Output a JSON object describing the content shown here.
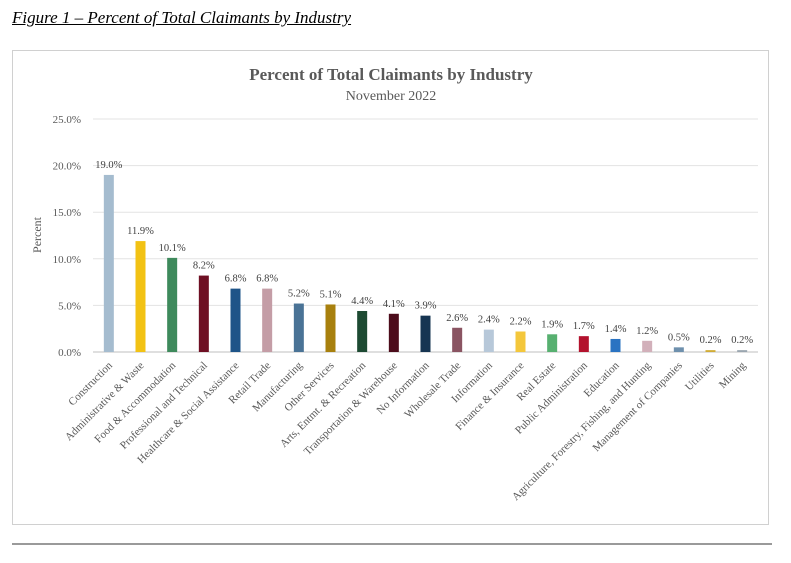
{
  "figure_caption": "Figure 1 – Percent of Total Claimants by Industry",
  "chart_data": {
    "type": "bar",
    "title": "Percent of Total Claimants by Industry",
    "subtitle": "November 2022",
    "xlabel": "",
    "ylabel": "Percent",
    "ylim": [
      0,
      25
    ],
    "yticks": [
      "0.0%",
      "5.0%",
      "10.0%",
      "15.0%",
      "20.0%",
      "25.0%"
    ],
    "grid": true,
    "legend": "none",
    "categories": [
      "Construction",
      "Administrative & Waste",
      "Food & Accommodation",
      "Professional and Technical",
      "Healthcare & Social Assistance",
      "Retail Trade",
      "Manufacturing",
      "Other Services",
      "Arts, Entmt. & Recreation",
      "Transportation & Warehouse",
      "No Information",
      "Wholesale Trade",
      "Information",
      "Finance & Insurance",
      "Real Estate",
      "Public Administration",
      "Education",
      "Agriculture, Forestry, Fishing, and Hunting",
      "Management of Companies",
      "Utilities",
      "Mining"
    ],
    "values": [
      19.0,
      11.9,
      10.1,
      8.2,
      6.8,
      6.8,
      5.2,
      5.1,
      4.4,
      4.1,
      3.9,
      2.6,
      2.4,
      2.2,
      1.9,
      1.7,
      1.4,
      1.2,
      0.5,
      0.2,
      0.2
    ],
    "data_labels": [
      "19.0%",
      "11.9%",
      "10.1%",
      "8.2%",
      "6.8%",
      "6.8%",
      "5.2%",
      "5.1%",
      "4.4%",
      "4.1%",
      "3.9%",
      "2.6%",
      "2.4%",
      "2.2%",
      "1.9%",
      "1.7%",
      "1.4%",
      "1.2%",
      "0.5%",
      "0.2%",
      "0.2%"
    ],
    "colors": [
      "#a5bccf",
      "#f2c214",
      "#3e8a5c",
      "#6e0f23",
      "#1e5488",
      "#c49da6",
      "#4a7396",
      "#a8800e",
      "#1d4a32",
      "#4c0c1b",
      "#163552",
      "#8a5462",
      "#b7c8d9",
      "#f4c73b",
      "#57b070",
      "#b3122d",
      "#2a73c2",
      "#d2b0ba",
      "#6e90ad",
      "#d1ac35",
      "#9aa6b0"
    ]
  }
}
